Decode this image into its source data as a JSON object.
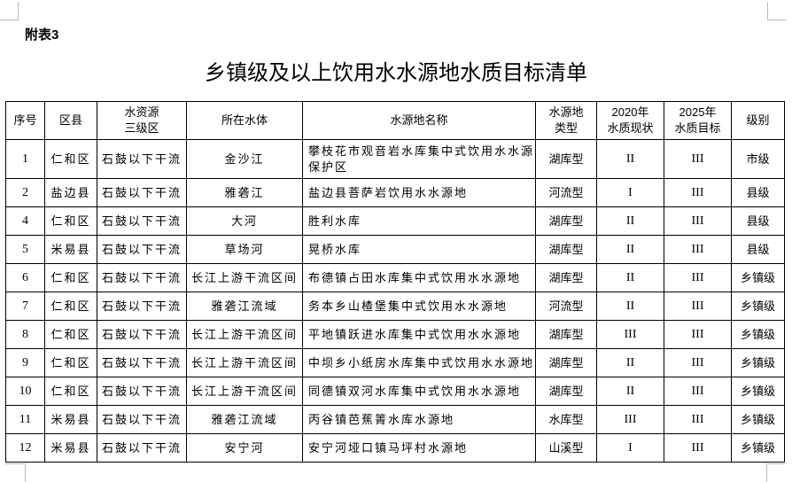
{
  "note": "附表3",
  "title": "乡镇级及以上饮用水水源地水质目标清单",
  "headers": [
    "序号",
    "区县",
    "水资源\n三级区",
    "所在水体",
    "水源地名称",
    "水源地\n类型",
    "2020年\n水质现状",
    "2025年\n水质目标",
    "级别"
  ],
  "rows": [
    [
      "1",
      "仁和区",
      "石鼓以下干流",
      "金沙江",
      "攀枝花市观音岩水库集中式饮用水水源保护区",
      "湖库型",
      "II",
      "III",
      "市级"
    ],
    [
      "2",
      "盐边县",
      "石鼓以下干流",
      "雅砻江",
      "盐边县菩萨岩饮用水水源地",
      "河流型",
      "I",
      "III",
      "县级"
    ],
    [
      "4",
      "仁和区",
      "石鼓以下干流",
      "大河",
      "胜利水库",
      "湖库型",
      "II",
      "III",
      "县级"
    ],
    [
      "5",
      "米易县",
      "石鼓以下干流",
      "草场河",
      "晃桥水库",
      "湖库型",
      "II",
      "III",
      "县级"
    ],
    [
      "6",
      "仁和区",
      "石鼓以下干流",
      "长江上游干流区间",
      "布德镇占田水库集中式饮用水水源地",
      "湖库型",
      "II",
      "III",
      "乡镇级"
    ],
    [
      "7",
      "仁和区",
      "石鼓以下干流",
      "雅砻江流域",
      "务本乡山楂堡集中式饮用水水源地",
      "河流型",
      "II",
      "III",
      "乡镇级"
    ],
    [
      "8",
      "仁和区",
      "石鼓以下干流",
      "长江上游干流区间",
      "平地镇跃进水库集中式饮用水水源地",
      "湖库型",
      "III",
      "III",
      "乡镇级"
    ],
    [
      "9",
      "仁和区",
      "石鼓以下干流",
      "长江上游干流区间",
      "中坝乡小纸房水库集中式饮用水水源地",
      "湖库型",
      "II",
      "III",
      "乡镇级"
    ],
    [
      "10",
      "仁和区",
      "石鼓以下干流",
      "长江上游干流区间",
      "同德镇双河水库集中式饮用水水源地",
      "湖库型",
      "II",
      "III",
      "乡镇级"
    ],
    [
      "11",
      "米易县",
      "石鼓以下干流",
      "雅砻江流域",
      "丙谷镇芭蕉箐水库水源地",
      "水库型",
      "III",
      "III",
      "乡镇级"
    ],
    [
      "12",
      "米易县",
      "石鼓以下干流",
      "安宁河",
      "安宁河垭口镇马坪村水源地",
      "山溪型",
      "I",
      "III",
      "乡镇级"
    ]
  ]
}
